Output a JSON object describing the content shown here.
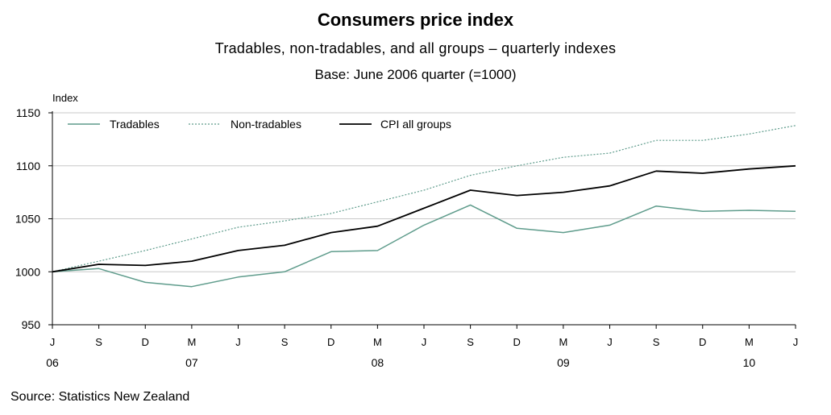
{
  "header": {
    "title": "Consumers price index",
    "subtitle": "Tradables, non-tradables, and all groups – quarterly indexes",
    "base": "Base: June 2006 quarter (=1000)"
  },
  "footer": {
    "source": "Source: Statistics New Zealand"
  },
  "chart_data": {
    "type": "line",
    "ylabel": "Index",
    "ylim": [
      950,
      1150
    ],
    "yticks": [
      950,
      1000,
      1050,
      1100,
      1150
    ],
    "grid": true,
    "legend_position": "top-left",
    "x": [
      "J",
      "S",
      "D",
      "M",
      "J",
      "S",
      "D",
      "M",
      "J",
      "S",
      "D",
      "M",
      "J",
      "S",
      "D",
      "M",
      "J"
    ],
    "year_labels": [
      {
        "index": 0,
        "label": "06"
      },
      {
        "index": 3,
        "label": "07"
      },
      {
        "index": 7,
        "label": "08"
      },
      {
        "index": 11,
        "label": "09"
      },
      {
        "index": 15,
        "label": "10"
      }
    ],
    "series": [
      {
        "name": "Tradables",
        "color": "#5f9c8c",
        "style": "solid",
        "values": [
          1000,
          1003,
          990,
          986,
          995,
          1000,
          1019,
          1020,
          1044,
          1063,
          1041,
          1037,
          1044,
          1062,
          1057,
          1058,
          1057
        ]
      },
      {
        "name": "Non-tradables",
        "color": "#5f9c8c",
        "style": "dotted",
        "values": [
          1000,
          1010,
          1020,
          1031,
          1042,
          1048,
          1055,
          1066,
          1077,
          1091,
          1100,
          1108,
          1112,
          1124,
          1124,
          1130,
          1138
        ]
      },
      {
        "name": "CPI all groups",
        "color": "#000000",
        "style": "solid",
        "values": [
          1000,
          1007,
          1006,
          1010,
          1020,
          1025,
          1037,
          1043,
          1060,
          1077,
          1072,
          1075,
          1081,
          1095,
          1093,
          1097,
          1100
        ]
      }
    ]
  }
}
